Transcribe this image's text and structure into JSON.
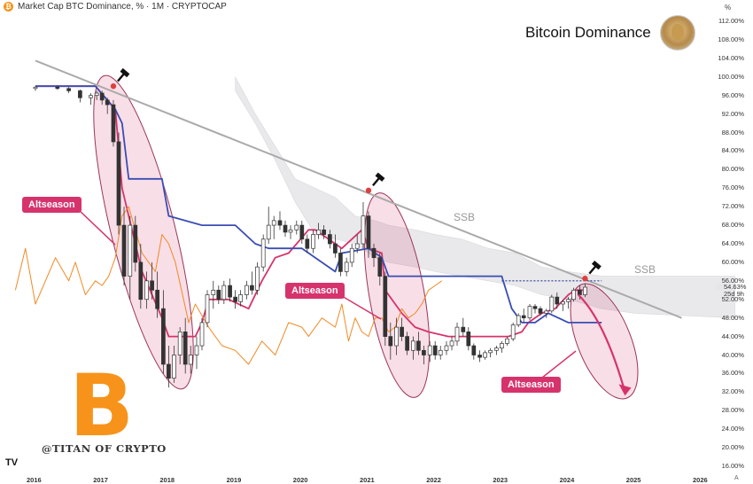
{
  "header": {
    "coin_glyph": "₿",
    "symbol_text": "Market Cap BTC Dominance, % · 1M · CRYPTOCAP"
  },
  "title": "Bitcoin Dominance",
  "watermark": "@TITAN OF CRYPTO",
  "logo_text": "TV",
  "btc_glyph": "B",
  "pct_axis_label": "%",
  "axis_corner": "A",
  "altseason_labels": [
    "Altseason",
    "Altseason",
    "Altseason"
  ],
  "ssb_labels": [
    "SSB",
    "SSB"
  ],
  "current_values": {
    "price": "54.63%",
    "timer": "25d 9h"
  },
  "chart_data": {
    "type": "candlestick",
    "title": "Bitcoin Dominance",
    "ylabel": "%",
    "y_ticks": [
      "112.00%",
      "108.00%",
      "104.00%",
      "100.00%",
      "96.00%",
      "92.00%",
      "88.00%",
      "84.00%",
      "80.00%",
      "76.00%",
      "72.00%",
      "68.00%",
      "64.00%",
      "60.00%",
      "56.00%",
      "52.00%",
      "48.00%",
      "44.00%",
      "40.00%",
      "36.00%",
      "32.00%",
      "28.00%",
      "24.00%",
      "20.00%",
      "16.00%"
    ],
    "y_tick_values": [
      112,
      108,
      104,
      100,
      96,
      92,
      88,
      84,
      80,
      76,
      72,
      68,
      64,
      60,
      56,
      52,
      48,
      44,
      40,
      36,
      32,
      28,
      24,
      20,
      16
    ],
    "ylim": [
      14.5,
      114
    ],
    "x_ticks": [
      "2016",
      "2017",
      "2018",
      "2019",
      "2020",
      "2021",
      "2022",
      "2023",
      "2024",
      "2025",
      "2026"
    ],
    "x_tick_values": [
      2016,
      2017,
      2018,
      2019,
      2020,
      2021,
      2022,
      2023,
      2024,
      2025,
      2026
    ],
    "candles": [
      [
        2016.0,
        97.5,
        98,
        97.0,
        97.8
      ],
      [
        2016.33,
        97.8,
        98.2,
        97.2,
        97.5
      ],
      [
        2016.5,
        97.5,
        97.8,
        96.5,
        97.0
      ],
      [
        2016.67,
        97.0,
        97.3,
        94.5,
        95.5
      ],
      [
        2016.83,
        95.5,
        96.5,
        94.0,
        96.0
      ],
      [
        2016.92,
        96.0,
        97.0,
        95.0,
        96.5
      ],
      [
        2017.0,
        96.5,
        97.0,
        94.0,
        95.0
      ],
      [
        2017.08,
        95.0,
        95.5,
        92.0,
        94.0
      ],
      [
        2017.17,
        94.0,
        95.0,
        85.0,
        86.0
      ],
      [
        2017.25,
        86.0,
        88.0,
        66.0,
        68.0
      ],
      [
        2017.33,
        68.0,
        72.0,
        55.0,
        57.0
      ],
      [
        2017.42,
        57.0,
        70.0,
        52.0,
        68.0
      ],
      [
        2017.5,
        68.0,
        70.0,
        58.0,
        60.0
      ],
      [
        2017.58,
        60.0,
        64.0,
        50.0,
        52.0
      ],
      [
        2017.67,
        52.0,
        58.0,
        50.0,
        56.0
      ],
      [
        2017.75,
        56.0,
        60.0,
        52.0,
        54.0
      ],
      [
        2017.83,
        54.0,
        58.0,
        48.0,
        50.0
      ],
      [
        2017.92,
        50.0,
        54.0,
        36.0,
        38.0
      ],
      [
        2018.0,
        38.0,
        42.0,
        33.0,
        35.0
      ],
      [
        2018.08,
        35.0,
        42.0,
        34.0,
        40.0
      ],
      [
        2018.17,
        40.0,
        46.0,
        38.0,
        45.0
      ],
      [
        2018.25,
        45.0,
        48.0,
        36.0,
        38.0
      ],
      [
        2018.33,
        38.0,
        42.0,
        36.0,
        40.0
      ],
      [
        2018.42,
        40.0,
        44.0,
        37.0,
        42.0
      ],
      [
        2018.5,
        42.0,
        48.0,
        41.0,
        47.0
      ],
      [
        2018.58,
        47.0,
        54.0,
        46.0,
        53.0
      ],
      [
        2018.67,
        53.0,
        56.0,
        50.0,
        54.0
      ],
      [
        2018.75,
        54.0,
        55.0,
        51.0,
        52.0
      ],
      [
        2018.83,
        52.0,
        56.0,
        51.0,
        55.0
      ],
      [
        2018.92,
        55.0,
        56.5,
        51.5,
        52.5
      ],
      [
        2019.0,
        52.5,
        54.0,
        50.0,
        51.5
      ],
      [
        2019.08,
        51.5,
        54.0,
        50.5,
        53.0
      ],
      [
        2019.17,
        53.0,
        56.0,
        52.0,
        55.0
      ],
      [
        2019.25,
        55.0,
        58.0,
        53.0,
        54.0
      ],
      [
        2019.33,
        54.0,
        60.0,
        53.0,
        59.0
      ],
      [
        2019.42,
        59.0,
        66.0,
        58.0,
        65.0
      ],
      [
        2019.5,
        65.0,
        72.0,
        64.0,
        68.0
      ],
      [
        2019.58,
        68.0,
        70.0,
        65.0,
        69.0
      ],
      [
        2019.67,
        69.0,
        71.0,
        67.0,
        68.0
      ],
      [
        2019.75,
        68.0,
        69.0,
        65.5,
        66.5
      ],
      [
        2019.83,
        66.5,
        68.0,
        65.0,
        67.0
      ],
      [
        2019.92,
        67.0,
        69.0,
        66.0,
        68.0
      ],
      [
        2020.0,
        68.0,
        69.0,
        64.0,
        65.0
      ],
      [
        2020.08,
        65.0,
        66.0,
        62.0,
        63.0
      ],
      [
        2020.17,
        63.0,
        67.0,
        62.0,
        66.0
      ],
      [
        2020.25,
        66.0,
        68.5,
        65.0,
        67.0
      ],
      [
        2020.33,
        67.0,
        68.0,
        65.0,
        66.0
      ],
      [
        2020.42,
        66.0,
        67.0,
        63.0,
        64.0
      ],
      [
        2020.5,
        64.0,
        66.0,
        61.0,
        62.0
      ],
      [
        2020.58,
        62.0,
        63.0,
        57.0,
        58.0
      ],
      [
        2020.67,
        58.0,
        61.0,
        57.0,
        60.0
      ],
      [
        2020.75,
        60.0,
        64.0,
        59.0,
        63.0
      ],
      [
        2020.83,
        63.0,
        66.0,
        62.0,
        64.0
      ],
      [
        2020.92,
        64.0,
        73.0,
        63.0,
        70.0
      ],
      [
        2021.0,
        70.0,
        71.0,
        61.0,
        63.0
      ],
      [
        2021.08,
        63.0,
        64.0,
        59.0,
        61.0
      ],
      [
        2021.17,
        61.0,
        62.0,
        55.0,
        57.0
      ],
      [
        2021.25,
        57.0,
        58.0,
        42.0,
        44.0
      ],
      [
        2021.33,
        44.0,
        47.0,
        39.0,
        42.0
      ],
      [
        2021.42,
        42.0,
        48.0,
        40.0,
        46.0
      ],
      [
        2021.5,
        46.0,
        48.0,
        43.0,
        44.0
      ],
      [
        2021.58,
        44.0,
        45.0,
        40.0,
        41.0
      ],
      [
        2021.67,
        41.0,
        44.0,
        39.0,
        43.0
      ],
      [
        2021.75,
        43.0,
        45.0,
        40.0,
        41.0
      ],
      [
        2021.83,
        41.0,
        42.0,
        38.0,
        40.0
      ],
      [
        2021.92,
        40.0,
        43.0,
        38.5,
        42.0
      ],
      [
        2022.0,
        42.0,
        43.0,
        39.0,
        40.0
      ],
      [
        2022.08,
        40.0,
        42.0,
        39.0,
        41.0
      ],
      [
        2022.17,
        41.0,
        43.0,
        40.0,
        42.0
      ],
      [
        2022.25,
        42.0,
        44.0,
        41.0,
        43.0
      ],
      [
        2022.33,
        43.0,
        47.0,
        42.0,
        46.0
      ],
      [
        2022.42,
        46.0,
        48.0,
        44.0,
        45.0
      ],
      [
        2022.5,
        45.0,
        46.0,
        41.0,
        42.0
      ],
      [
        2022.58,
        42.0,
        42.5,
        39.0,
        40.0
      ],
      [
        2022.67,
        40.0,
        41.0,
        38.5,
        39.5
      ],
      [
        2022.75,
        39.5,
        41.0,
        39.0,
        40.5
      ],
      [
        2022.83,
        40.5,
        41.5,
        39.5,
        41.0
      ],
      [
        2022.92,
        41.0,
        42.0,
        40.0,
        41.5
      ],
      [
        2023.0,
        41.5,
        43.0,
        40.5,
        42.5
      ],
      [
        2023.08,
        42.5,
        44.0,
        42.0,
        43.5
      ],
      [
        2023.17,
        43.5,
        47.0,
        43.0,
        46.5
      ],
      [
        2023.25,
        46.5,
        49.0,
        46.0,
        48.5
      ],
      [
        2023.33,
        48.5,
        50.0,
        47.0,
        48.0
      ],
      [
        2023.42,
        48.0,
        51.0,
        47.5,
        50.5
      ],
      [
        2023.5,
        50.5,
        51.0,
        49.0,
        50.0
      ],
      [
        2023.58,
        50.0,
        50.5,
        48.5,
        49.0
      ],
      [
        2023.67,
        49.0,
        50.0,
        48.0,
        49.5
      ],
      [
        2023.75,
        49.5,
        53.0,
        49.0,
        52.5
      ],
      [
        2023.83,
        52.5,
        53.5,
        50.0,
        51.0
      ],
      [
        2023.92,
        51.0,
        52.0,
        49.5,
        51.5
      ],
      [
        2024.0,
        51.5,
        52.5,
        50.0,
        52.0
      ],
      [
        2024.08,
        52.0,
        54.5,
        51.5,
        54.0
      ],
      [
        2024.17,
        54.0,
        55.0,
        52.0,
        53.0
      ],
      [
        2024.25,
        53.0,
        55.5,
        52.5,
        54.63
      ]
    ],
    "series": [
      {
        "color": "#d6336c",
        "x": [
          2016.0,
          2016.9,
          2017.2,
          2017.3,
          2017.6,
          2017.9,
          2018.0,
          2018.4,
          2018.5,
          2018.6,
          2018.9,
          2019.2,
          2019.4,
          2019.6,
          2019.8,
          2020.1,
          2020.2,
          2020.5,
          2020.6,
          2020.9,
          2021.0,
          2021.2,
          2021.25,
          2021.5,
          2021.7,
          2021.9,
          2022.2,
          2022.6,
          2022.9,
          2023.1,
          2023.3,
          2023.4,
          2023.6,
          2023.8,
          2024.0,
          2024.1,
          2024.25
        ],
        "values": [
          98,
          98,
          93,
          76,
          58,
          48,
          44,
          44,
          47,
          52,
          52,
          50,
          56,
          61,
          62,
          67,
          67,
          64,
          63,
          67,
          63,
          62,
          54,
          49,
          46,
          45,
          44,
          44,
          44,
          44,
          45,
          47,
          49,
          50,
          53,
          54,
          54
        ]
      },
      {
        "color": "#3a4db3",
        "x": [
          2016.0,
          2016.9,
          2017.2,
          2017.3,
          2017.4,
          2017.9,
          2018.0,
          2018.5,
          2019.0,
          2019.3,
          2019.5,
          2020.0,
          2020.5,
          2020.6,
          2021.0,
          2021.2,
          2021.3,
          2022.0,
          2022.1,
          2023.0,
          2023.15,
          2023.3,
          2023.5,
          2023.7,
          2024.0,
          2024.5
        ],
        "values": [
          98,
          98,
          93,
          90,
          78,
          78,
          70,
          68,
          68,
          64,
          63,
          63,
          58,
          62,
          63,
          61,
          57,
          57,
          57,
          57,
          50,
          47,
          47,
          49,
          47,
          47
        ]
      },
      {
        "color": "#f08a24",
        "x": [
          2015.7,
          2015.85,
          2016.0,
          2016.3,
          2016.5,
          2016.6,
          2016.75,
          2016.9,
          2017.0,
          2017.1,
          2017.2,
          2017.3,
          2017.4,
          2017.6,
          2017.8,
          2017.9,
          2018.0,
          2018.1,
          2018.3,
          2018.4,
          2018.6,
          2018.8,
          2019.0,
          2019.2,
          2019.4,
          2019.6,
          2019.8,
          2020.0,
          2020.1,
          2020.3,
          2020.5,
          2020.6,
          2020.7,
          2020.8,
          2020.9,
          2021.0,
          2021.1,
          2021.2,
          2021.3,
          2021.4,
          2021.5,
          2021.6,
          2021.7,
          2021.8,
          2021.9,
          2022.0,
          2022.1
        ],
        "values": [
          54,
          63,
          51,
          61,
          56,
          60,
          53,
          56,
          55,
          57,
          61,
          70,
          72,
          62,
          58,
          66,
          64,
          60,
          47,
          51,
          46,
          42,
          41,
          38,
          43,
          40,
          47,
          46,
          44,
          48,
          46,
          51,
          43,
          48,
          45,
          44,
          48,
          48,
          45,
          46,
          50,
          48,
          49,
          51,
          54,
          55,
          56
        ]
      }
    ],
    "cloud_top": [
      [
        2019.0,
        100
      ],
      [
        2019.3,
        92
      ],
      [
        2019.6,
        85
      ],
      [
        2019.9,
        78
      ],
      [
        2020.2,
        76
      ],
      [
        2020.5,
        74
      ],
      [
        2020.8,
        70
      ],
      [
        2021.1,
        69
      ],
      [
        2021.3,
        68
      ],
      [
        2021.7,
        67
      ],
      [
        2022.0,
        66
      ],
      [
        2022.4,
        65
      ],
      [
        2022.8,
        63
      ],
      [
        2023.2,
        62
      ],
      [
        2023.6,
        59
      ],
      [
        2024.0,
        58
      ],
      [
        2024.5,
        57
      ],
      [
        2025.0,
        57
      ],
      [
        2026.5,
        57
      ]
    ],
    "cloud_bottom": [
      [
        2019.0,
        97
      ],
      [
        2019.3,
        90
      ],
      [
        2019.6,
        82
      ],
      [
        2019.9,
        73
      ],
      [
        2020.2,
        66
      ],
      [
        2020.5,
        65
      ],
      [
        2020.8,
        64
      ],
      [
        2021.1,
        61
      ],
      [
        2021.3,
        60
      ],
      [
        2021.7,
        59
      ],
      [
        2022.0,
        58
      ],
      [
        2022.4,
        57
      ],
      [
        2022.8,
        56
      ],
      [
        2023.2,
        55
      ],
      [
        2023.6,
        53
      ],
      [
        2024.0,
        52
      ],
      [
        2024.5,
        50
      ],
      [
        2025.0,
        49
      ],
      [
        2026.5,
        48
      ]
    ],
    "trendline": {
      "start": [
        2016.0,
        103.5
      ],
      "end": [
        2025.7,
        48.0
      ]
    },
    "dotted_level": {
      "value": 56.0,
      "x_start": 2023.0,
      "x_end": 2024.5
    },
    "tops": [
      [
        2017.17,
        98.0
      ],
      [
        2021.0,
        75.5
      ],
      [
        2024.25,
        56.5
      ]
    ],
    "projection": [
      [
        2024.15,
        53.0
      ],
      [
        2024.85,
        32.0
      ]
    ]
  }
}
